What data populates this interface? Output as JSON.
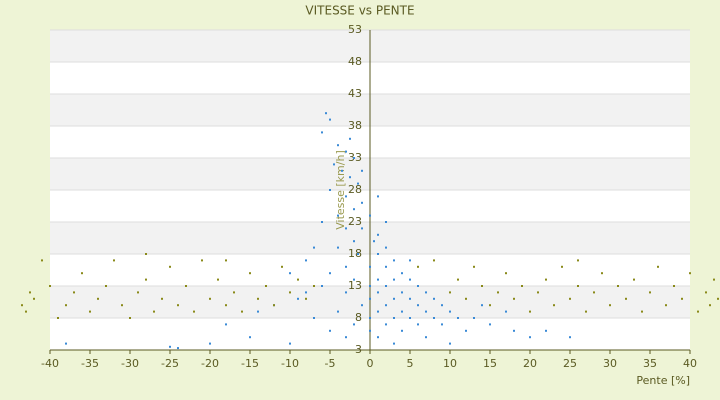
{
  "chart_data": {
    "type": "scatter",
    "title": "VITESSE vs PENTE",
    "xlabel": "Pente [%]",
    "ylabel": "Vitesse [km/h]",
    "xlim": [
      -40,
      40
    ],
    "xticks": [
      -40,
      -35,
      -30,
      -25,
      -20,
      -15,
      -10,
      -5,
      0,
      5,
      10,
      15,
      20,
      25,
      30,
      35,
      40
    ],
    "ylim": [
      3,
      53
    ],
    "yticks": [
      3,
      8,
      13,
      18,
      23,
      28,
      33,
      38,
      43,
      48,
      53
    ],
    "grid": true,
    "series": [
      {
        "color": "#3a8ad6",
        "x": [
          -5.5,
          -5,
          -6,
          -4,
          -3,
          -2,
          -4.5,
          -3.5,
          -2.5,
          -1.5,
          -5,
          -3,
          -1,
          -2,
          -4,
          0,
          -6,
          -3,
          -1,
          1,
          -2,
          0.5,
          -7,
          -4,
          2,
          -1.5,
          1,
          3,
          -8,
          -3,
          0,
          2,
          4,
          -5,
          -10,
          1,
          3,
          5,
          -2,
          6,
          0,
          2,
          -6,
          4,
          7,
          1,
          -3,
          8,
          3,
          5,
          0,
          -9,
          9,
          6,
          2,
          -1,
          -12,
          10,
          7,
          4,
          1,
          -4,
          11,
          8,
          5,
          3,
          0,
          -7,
          13,
          6,
          2,
          -2,
          9,
          15,
          4,
          0,
          -5,
          12,
          18,
          1,
          -3,
          7,
          -15,
          20,
          3,
          -10,
          -20,
          10,
          -25,
          -38,
          -24,
          25,
          22,
          -18,
          17,
          14,
          -14,
          -8,
          5,
          2,
          1,
          -1,
          -2.5
        ],
        "values": [
          40,
          39,
          37,
          35,
          34,
          33,
          32,
          31,
          30,
          29,
          28,
          27,
          26,
          25,
          24,
          24,
          23,
          22,
          22,
          21,
          20,
          20,
          19,
          19,
          19,
          18,
          18,
          17,
          17,
          16,
          16,
          16,
          15,
          15,
          15,
          14,
          14,
          14,
          14,
          13,
          13,
          13,
          13,
          12,
          12,
          12,
          12,
          11,
          11,
          11,
          11,
          11,
          10,
          10,
          10,
          10,
          10,
          9,
          9,
          9,
          9,
          9,
          8,
          8,
          8,
          8,
          8,
          8,
          8,
          7,
          7,
          7,
          7,
          7,
          6,
          6,
          6,
          6,
          6,
          5,
          5,
          5,
          5,
          5,
          4,
          4,
          4,
          4,
          3.5,
          4,
          3.3,
          5,
          6,
          7,
          9,
          10,
          9,
          12,
          17,
          23,
          27,
          31,
          36
        ]
      },
      {
        "color": "#8a8a1a",
        "x": [
          -43.5,
          -42.5,
          -43,
          -42,
          -40,
          -39,
          -38,
          -37,
          -36,
          -35,
          -34,
          -33,
          -32,
          -31,
          -30,
          -29,
          -28,
          -27,
          -26,
          -25,
          -24,
          -23,
          -22,
          -21,
          -20,
          -19,
          -18,
          -17,
          -16,
          -15,
          -14,
          -13,
          -12,
          -11,
          -10,
          -9,
          -8,
          -7,
          10,
          11,
          12,
          13,
          14,
          15,
          16,
          17,
          18,
          19,
          20,
          21,
          22,
          23,
          24,
          25,
          26,
          27,
          28,
          29,
          30,
          31,
          32,
          33,
          34,
          35,
          36,
          37,
          38,
          39,
          40,
          41,
          42,
          43,
          42.5,
          43.5,
          -41,
          -28,
          -18,
          6,
          8,
          26
        ],
        "values": [
          10,
          12,
          9,
          11,
          13,
          8,
          10,
          12,
          15,
          9,
          11,
          13,
          17,
          10,
          8,
          12,
          14,
          9,
          11,
          16,
          10,
          13,
          9,
          17,
          11,
          14,
          10,
          12,
          9,
          15,
          11,
          13,
          10,
          16,
          12,
          14,
          11,
          13,
          12,
          14,
          11,
          16,
          13,
          10,
          12,
          15,
          11,
          13,
          9,
          12,
          14,
          10,
          16,
          11,
          13,
          9,
          12,
          15,
          10,
          13,
          11,
          14,
          9,
          12,
          16,
          10,
          13,
          11,
          15,
          9,
          12,
          14,
          10,
          11,
          17,
          18,
          17,
          16,
          17,
          17
        ]
      }
    ]
  }
}
